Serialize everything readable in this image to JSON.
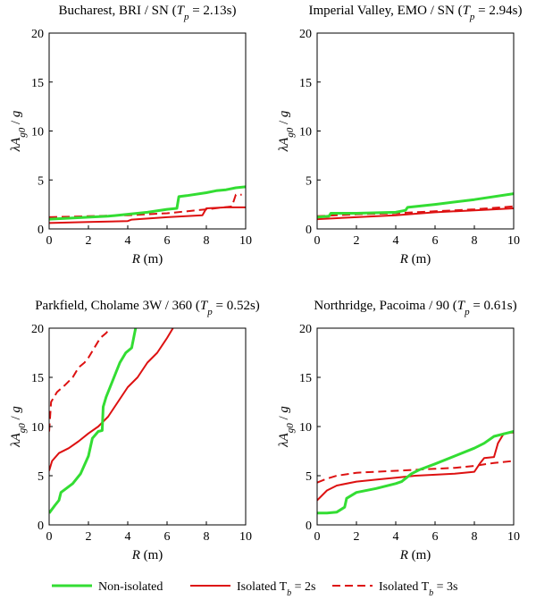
{
  "colors": {
    "green": "#33dd33",
    "red": "#dd1111",
    "axis": "#000000"
  },
  "legend": [
    {
      "label": "Non-isolated",
      "color": "#33dd33",
      "style": "solid"
    },
    {
      "label": "Isolated T",
      "sub": "b",
      "suffix": " = 2s",
      "color": "#dd1111",
      "style": "solid"
    },
    {
      "label": "Isolated T",
      "sub": "b",
      "suffix": " = 3s",
      "color": "#dd1111",
      "style": "dashed"
    }
  ],
  "chart_data": [
    {
      "type": "line",
      "title": {
        "main": "Bucharest, BRI / SN (",
        "var": "T",
        "sub": "p",
        "rest": " = 2.13s)"
      },
      "xlabel": {
        "var": "R",
        "rest": " (m)"
      },
      "ylabel": {
        "pre": "λ",
        "var": "A",
        "sub": "g0",
        "rest": " / ",
        "var2": "g"
      },
      "xlim": [
        0,
        10
      ],
      "ylim": [
        0,
        20
      ],
      "xticks": [
        "0",
        "2",
        "4",
        "6",
        "8",
        "10"
      ],
      "yticks": [
        "0",
        "5",
        "10",
        "15",
        "20"
      ],
      "series": [
        {
          "name": "Non-isolated",
          "style": "solid",
          "color": "#33dd33",
          "x": [
            0,
            1,
            2,
            3,
            4,
            5,
            6,
            6.5,
            6.6,
            7,
            8,
            8.5,
            9,
            9.5,
            10
          ],
          "y": [
            1.0,
            1.1,
            1.2,
            1.3,
            1.5,
            1.7,
            2.0,
            2.1,
            3.3,
            3.4,
            3.7,
            3.9,
            4.0,
            4.2,
            4.3
          ]
        },
        {
          "name": "Isolated Tb = 2s",
          "style": "solid",
          "color": "#dd1111",
          "x": [
            0,
            2,
            4,
            4.2,
            6,
            7.8,
            8,
            9,
            10
          ],
          "y": [
            0.6,
            0.7,
            0.8,
            0.95,
            1.2,
            1.4,
            2.1,
            2.2,
            2.2
          ]
        },
        {
          "name": "Isolated Tb = 3s",
          "style": "dashed",
          "color": "#dd1111",
          "x": [
            0,
            2,
            4,
            6,
            8,
            9.3,
            9.5,
            9.8
          ],
          "y": [
            1.2,
            1.3,
            1.4,
            1.6,
            2.0,
            2.3,
            3.5,
            3.5
          ]
        }
      ]
    },
    {
      "type": "line",
      "title": {
        "main": "Imperial Valley, EMO / SN (",
        "var": "T",
        "sub": "p",
        "rest": " = 2.94s)"
      },
      "xlabel": {
        "var": "R",
        "rest": " (m)"
      },
      "ylabel": {
        "pre": "λ",
        "var": "A",
        "sub": "g0",
        "rest": " / ",
        "var2": "g"
      },
      "xlim": [
        0,
        10
      ],
      "ylim": [
        0,
        20
      ],
      "xticks": [
        "0",
        "2",
        "4",
        "6",
        "8",
        "10"
      ],
      "yticks": [
        "0",
        "5",
        "10",
        "15",
        "20"
      ],
      "series": [
        {
          "name": "Non-isolated",
          "style": "solid",
          "color": "#33dd33",
          "x": [
            0,
            0.6,
            0.7,
            2,
            4,
            4.5,
            4.6,
            6,
            8,
            10
          ],
          "y": [
            1.2,
            1.3,
            1.6,
            1.6,
            1.7,
            1.9,
            2.2,
            2.5,
            3.0,
            3.6
          ]
        },
        {
          "name": "Isolated Tb = 2s",
          "style": "solid",
          "color": "#dd1111",
          "x": [
            0,
            2,
            4,
            6,
            8,
            10
          ],
          "y": [
            1.0,
            1.2,
            1.4,
            1.7,
            1.9,
            2.1
          ]
        },
        {
          "name": "Isolated Tb = 3s",
          "style": "dashed",
          "color": "#dd1111",
          "x": [
            0,
            2,
            4,
            6,
            8,
            10
          ],
          "y": [
            1.3,
            1.5,
            1.6,
            1.8,
            2.0,
            2.3
          ]
        }
      ]
    },
    {
      "type": "line",
      "title": {
        "main": "Parkfield, Cholame 3W / 360 (",
        "var": "T",
        "sub": "p",
        "rest": " = 0.52s)"
      },
      "xlabel": {
        "var": "R",
        "rest": " (m)"
      },
      "ylabel": {
        "pre": "λ",
        "var": "A",
        "sub": "g0",
        "rest": " / ",
        "var2": "g"
      },
      "xlim": [
        0,
        10
      ],
      "ylim": [
        0,
        20
      ],
      "xticks": [
        "0",
        "2",
        "4",
        "6",
        "8",
        "10"
      ],
      "yticks": [
        "0",
        "5",
        "10",
        "15",
        "20"
      ],
      "series": [
        {
          "name": "Non-isolated",
          "style": "solid",
          "color": "#33dd33",
          "x": [
            0,
            0.3,
            0.5,
            0.6,
            0.8,
            1.2,
            1.6,
            2.0,
            2.2,
            2.5,
            2.7,
            2.75,
            2.9,
            3.1,
            3.3,
            3.6,
            3.9,
            4.2,
            4.4
          ],
          "y": [
            1.2,
            2.0,
            2.5,
            3.3,
            3.6,
            4.2,
            5.2,
            7.0,
            8.8,
            9.5,
            9.6,
            12.0,
            13.0,
            14.0,
            15.0,
            16.5,
            17.5,
            18.0,
            20.0
          ]
        },
        {
          "name": "Isolated Tb = 2s",
          "style": "solid",
          "color": "#dd1111",
          "x": [
            0,
            0.15,
            0.5,
            1,
            1.5,
            2,
            2.5,
            3,
            3.5,
            4,
            4.5,
            5,
            5.5,
            6,
            6.3
          ],
          "y": [
            5.5,
            6.5,
            7.3,
            7.8,
            8.5,
            9.3,
            10.0,
            11.0,
            12.5,
            14.0,
            15.0,
            16.5,
            17.5,
            19.0,
            20.0
          ]
        },
        {
          "name": "Isolated Tb = 3s",
          "style": "dashed",
          "color": "#dd1111",
          "x": [
            0,
            0.1,
            0.4,
            0.8,
            1.2,
            1.5,
            1.8,
            2.0,
            2.3,
            2.6,
            2.9,
            3.1
          ],
          "y": [
            9.5,
            12.5,
            13.5,
            14.2,
            15.0,
            16.0,
            16.5,
            17.0,
            18.0,
            19.0,
            19.5,
            20.0
          ]
        }
      ]
    },
    {
      "type": "line",
      "title": {
        "main": "Northridge, Pacoima / 90 (",
        "var": "T",
        "sub": "p",
        "rest": " = 0.61s)"
      },
      "xlabel": {
        "var": "R",
        "rest": " (m)"
      },
      "ylabel": {
        "pre": "λ",
        "var": "A",
        "sub": "g0",
        "rest": " / ",
        "var2": "g"
      },
      "xlim": [
        0,
        10
      ],
      "ylim": [
        0,
        20
      ],
      "xticks": [
        "0",
        "2",
        "4",
        "6",
        "8",
        "10"
      ],
      "yticks": [
        "0",
        "5",
        "10",
        "15",
        "20"
      ],
      "series": [
        {
          "name": "Non-isolated",
          "style": "solid",
          "color": "#33dd33",
          "x": [
            0,
            0.5,
            1.0,
            1.4,
            1.5,
            2,
            3,
            4,
            4.3,
            4.8,
            5.2,
            6,
            7,
            8,
            8.5,
            9,
            10
          ],
          "y": [
            1.2,
            1.2,
            1.3,
            1.8,
            2.7,
            3.3,
            3.7,
            4.2,
            4.4,
            5.2,
            5.6,
            6.2,
            7.0,
            7.8,
            8.3,
            9.0,
            9.5
          ]
        },
        {
          "name": "Isolated Tb = 2s",
          "style": "solid",
          "color": "#dd1111",
          "x": [
            0,
            0.5,
            1,
            2,
            3,
            4,
            5,
            6,
            7,
            8,
            8.3,
            8.5,
            9.0,
            9.2,
            9.5,
            10
          ],
          "y": [
            2.5,
            3.5,
            4.0,
            4.4,
            4.6,
            4.8,
            5.0,
            5.1,
            5.2,
            5.4,
            6.3,
            6.8,
            6.9,
            8.3,
            9.3,
            9.4
          ]
        },
        {
          "name": "Isolated Tb = 3s",
          "style": "dashed",
          "color": "#dd1111",
          "x": [
            0,
            0.5,
            1,
            2,
            3,
            4,
            5,
            6,
            7,
            8,
            9,
            10
          ],
          "y": [
            4.3,
            4.7,
            5.0,
            5.3,
            5.4,
            5.5,
            5.6,
            5.7,
            5.8,
            6.0,
            6.3,
            6.5
          ]
        }
      ]
    }
  ]
}
